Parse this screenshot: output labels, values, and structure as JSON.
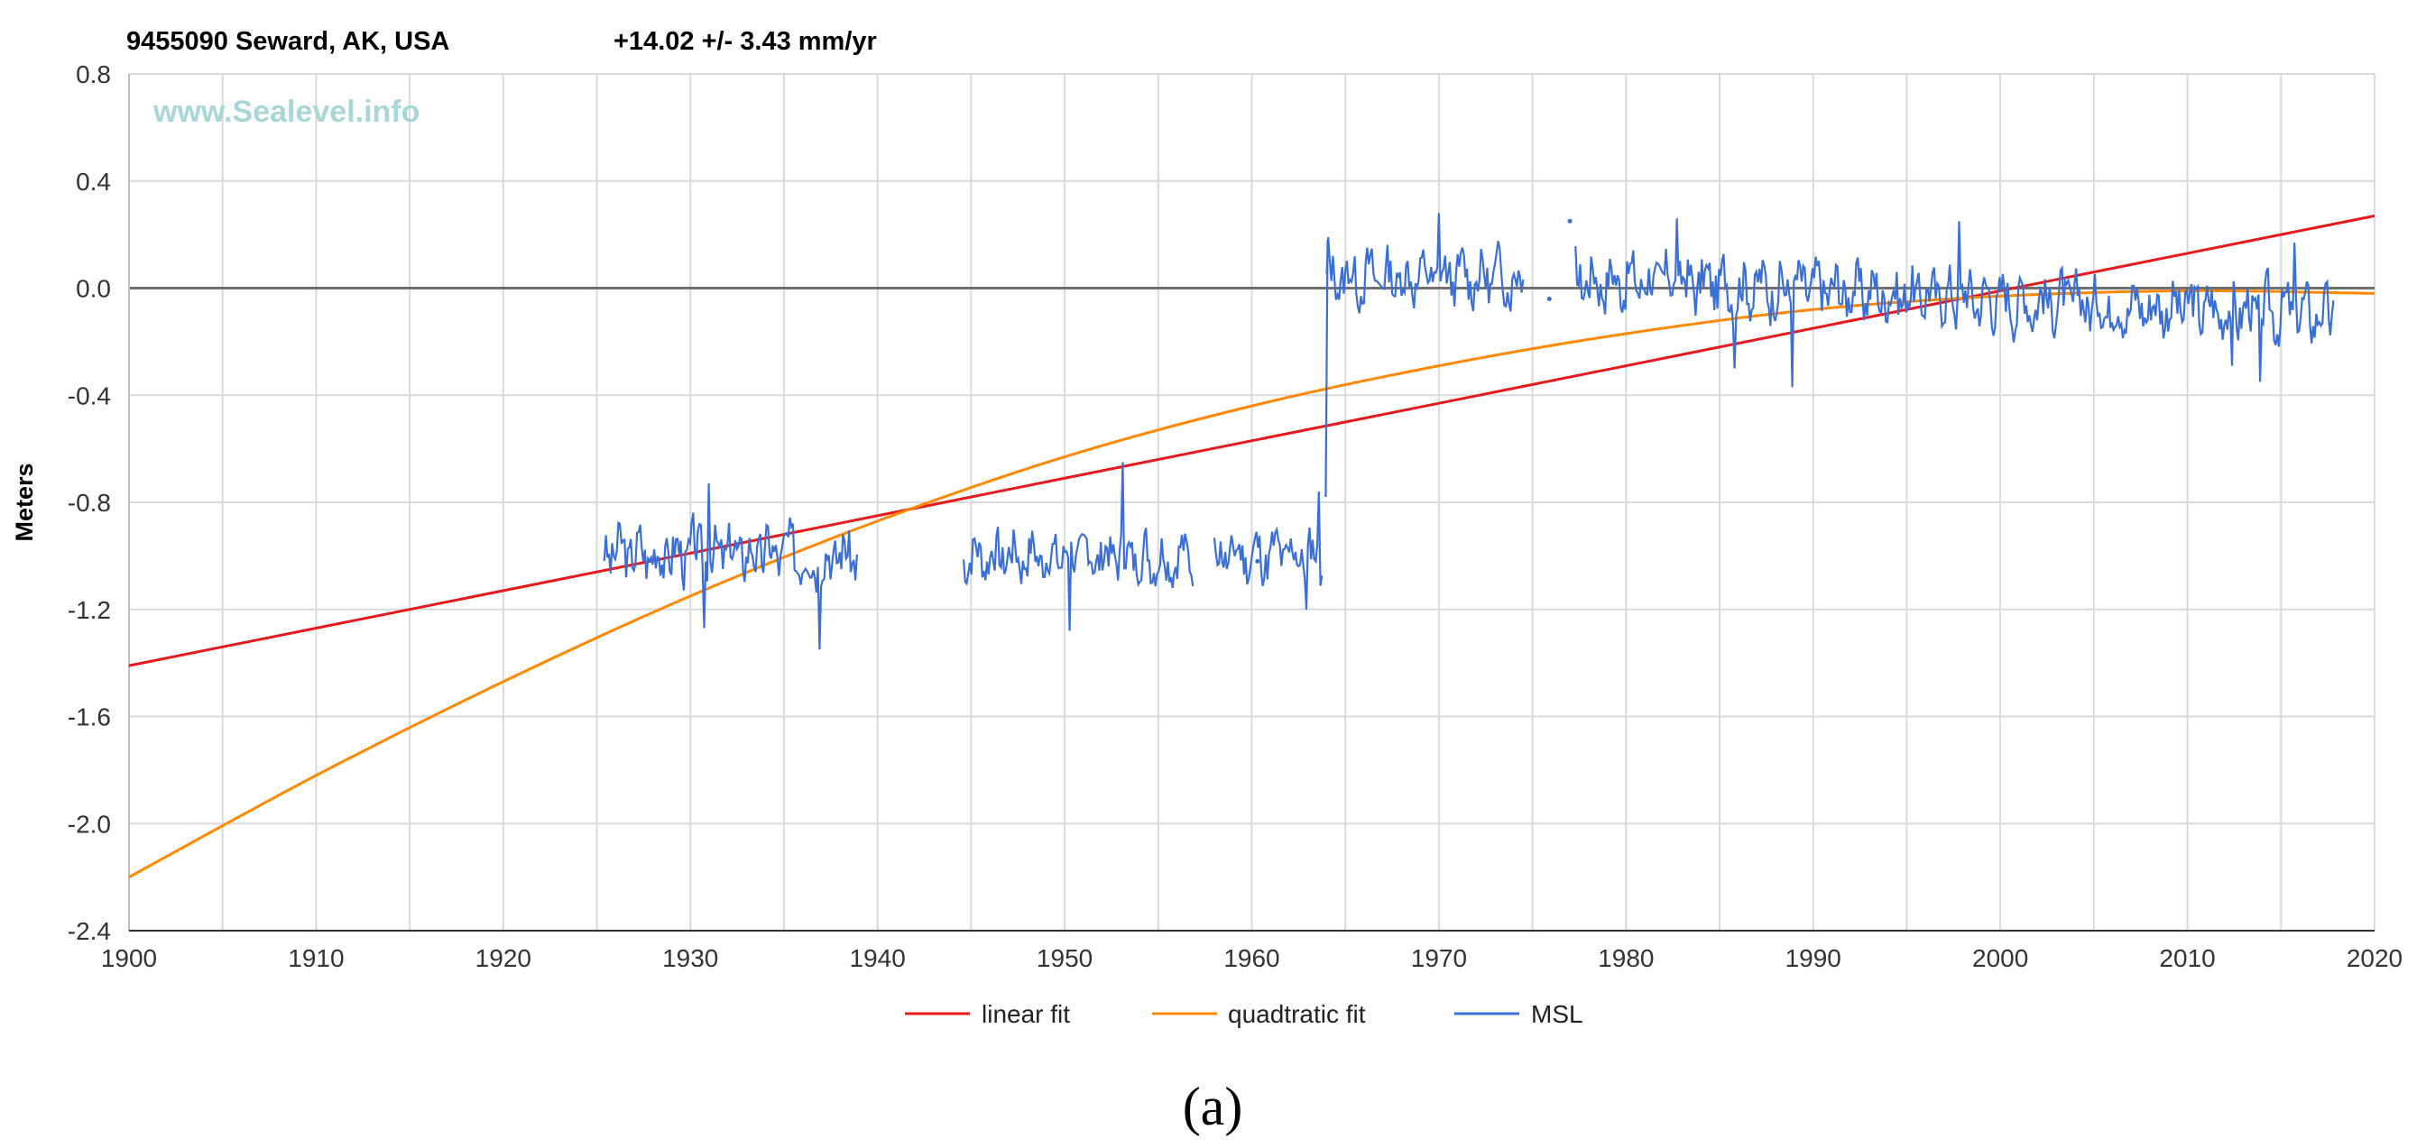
{
  "chart_data": {
    "type": "line",
    "title": "9455090 Seward, AK, USA",
    "subtitle": "+14.02 +/- 3.43 mm/yr",
    "watermark": "www.Sealevel.info",
    "ylabel": "Meters",
    "xlabel": "",
    "xlim": [
      1900,
      2020
    ],
    "ylim": [
      -2.4,
      0.8
    ],
    "x_ticks": [
      1900,
      1910,
      1920,
      1930,
      1940,
      1950,
      1960,
      1970,
      1980,
      1990,
      2000,
      2010,
      2020
    ],
    "y_ticks": [
      "0.8",
      "0.4",
      "0.0",
      "-0.4",
      "-0.8",
      "-1.2",
      "-1.6",
      "-2.0",
      "-2.4"
    ],
    "y_tick_values": [
      0.8,
      0.4,
      0.0,
      -0.4,
      -0.8,
      -1.2,
      -1.6,
      -2.0,
      -2.4
    ],
    "legend": [
      "linear fit",
      "quadtratic fit",
      "MSL"
    ],
    "colors": {
      "linear": "#e8191c",
      "quadratic": "#ff8800",
      "msl": "#3b6fd8",
      "grid": "#d9d9d9",
      "zero": "#707070"
    },
    "series": [
      {
        "name": "linear fit",
        "x": [
          1900,
          2020
        ],
        "y": [
          -1.41,
          0.27
        ]
      },
      {
        "name": "quadtratic fit",
        "x": [
          1900,
          1910,
          1920,
          1930,
          1940,
          1950,
          1960,
          1970,
          1980,
          1990,
          2000,
          2010,
          2020
        ],
        "y": [
          -2.2,
          -1.82,
          -1.47,
          -1.15,
          -0.87,
          -0.63,
          -0.44,
          -0.29,
          -0.17,
          -0.08,
          -0.03,
          -0.01,
          -0.02
        ]
      },
      {
        "name": "MSL",
        "segments": [
          {
            "x0": 1925.4,
            "x1": 1938.9,
            "base": -0.99,
            "amp": 0.09,
            "trend": 0.0,
            "seed": 3
          },
          {
            "x0": 1944.6,
            "x1": 1956.9,
            "base": -1.0,
            "amp": 0.08,
            "trend": 0.0,
            "seed": 7
          },
          {
            "x0": 1958.0,
            "x1": 1963.8,
            "base": -1.0,
            "amp": 0.08,
            "trend": 0.0,
            "seed": 11
          },
          {
            "x0": 1964.0,
            "x1": 1974.5,
            "base": 0.04,
            "amp": 0.08,
            "trend": 0.0,
            "seed": 13
          },
          {
            "x0": 1977.3,
            "x1": 2017.8,
            "base": 0.04,
            "amp": 0.09,
            "trend": -0.0035,
            "seed": 17
          }
        ],
        "spikes": [
          {
            "x": 1931.0,
            "y": -0.73
          },
          {
            "x": 1930.7,
            "y": -1.27
          },
          {
            "x": 1936.9,
            "y": -1.35
          },
          {
            "x": 1950.3,
            "y": -1.28
          },
          {
            "x": 1953.1,
            "y": -0.65
          },
          {
            "x": 1962.9,
            "y": -1.2
          },
          {
            "x": 1963.6,
            "y": -0.76
          },
          {
            "x": 1964.05,
            "y": 0.19
          },
          {
            "x": 1970.0,
            "y": 0.28
          },
          {
            "x": 1982.7,
            "y": 0.26
          },
          {
            "x": 1985.8,
            "y": -0.3
          },
          {
            "x": 1988.9,
            "y": -0.37
          },
          {
            "x": 1997.8,
            "y": 0.25
          },
          {
            "x": 2012.4,
            "y": -0.29
          },
          {
            "x": 2013.9,
            "y": -0.35
          },
          {
            "x": 2015.7,
            "y": 0.17
          }
        ]
      }
    ]
  },
  "caption": "(a)"
}
